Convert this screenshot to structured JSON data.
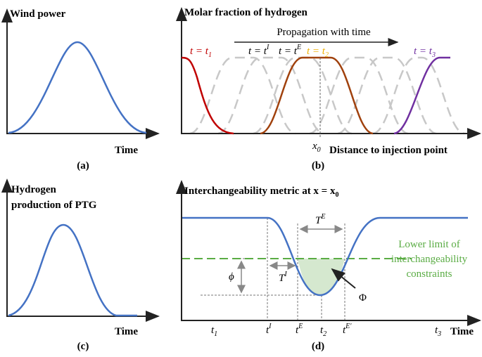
{
  "panels": [
    {
      "title": "Wind power",
      "x_axis": "Time",
      "caption": "(a)"
    },
    {
      "title": "Molar fraction of hydrogen",
      "arrow_label": "Propagation with time",
      "curve_labels": [
        {
          "base": "t = t",
          "sub": "1"
        },
        {
          "base": "t = t",
          "sup": "I"
        },
        {
          "base": "t = t",
          "sup": "E"
        },
        {
          "base": "t = t",
          "sub": "2"
        },
        {
          "base": "t = t",
          "sub": "3"
        }
      ],
      "position": {
        "base": "x",
        "sub": "0"
      },
      "x_axis": "Distance to injection point",
      "caption": "(b)"
    },
    {
      "title_lines": [
        "Hydrogen",
        "production of PTG"
      ],
      "x_axis": "Time",
      "caption": "(c)"
    },
    {
      "title": {
        "base": "Interchangeability metric at x = x",
        "sub": "0"
      },
      "duration_labels": [
        {
          "base": "T",
          "sup": "E"
        },
        {
          "base": "T",
          "sup": "I"
        }
      ],
      "depth_label": "ϕ",
      "area_label": "Φ",
      "limit_label": [
        "Lower limit of",
        "interchangeability",
        "constraints"
      ],
      "x_ticks": [
        {
          "base": "t",
          "sub": "1"
        },
        {
          "base": "t",
          "sup": "I"
        },
        {
          "base": "t",
          "sup": "E"
        },
        {
          "base": "t",
          "sub": "2"
        },
        {
          "base": "t",
          "sup": "E'"
        },
        {
          "base": "t",
          "sub": "3"
        }
      ],
      "x_axis": "Time",
      "caption": "(d)"
    }
  ]
}
